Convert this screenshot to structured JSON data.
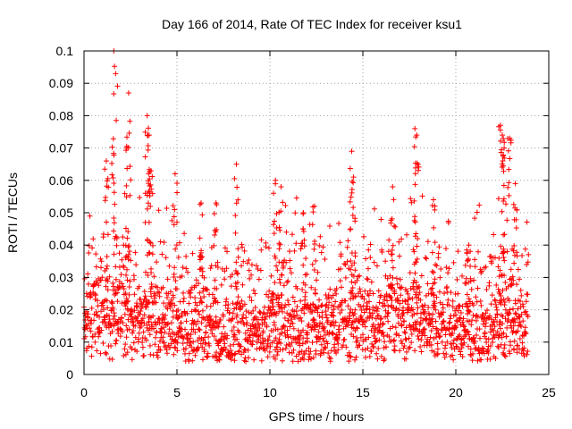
{
  "chart_data": {
    "type": "scatter",
    "title": "Day 166 of 2014, Rate Of TEC Index for receiver ksu1",
    "xlabel": "GPS time / hours",
    "ylabel": "ROTI / TECUs",
    "xlim": [
      0,
      25
    ],
    "ylim": [
      0,
      0.1
    ],
    "x_ticks": [
      0,
      5,
      10,
      15,
      20,
      25
    ],
    "x_tick_labels": [
      "0",
      "5",
      "10",
      "15",
      "20",
      "25"
    ],
    "y_ticks": [
      0,
      0.01,
      0.02,
      0.03,
      0.04,
      0.05,
      0.06,
      0.07,
      0.08,
      0.09,
      0.1
    ],
    "y_tick_labels": [
      "0",
      "0.01",
      "0.02",
      "0.03",
      "0.04",
      "0.05",
      "0.06",
      "0.07",
      "0.08",
      "0.09",
      "0.1"
    ],
    "grid": true,
    "marker": "plus",
    "series": [
      {
        "name": "ROTI",
        "color": "#ff0000",
        "x_range": [
          0,
          23.9
        ],
        "baseline": [
          [
            0,
            0.016
          ],
          [
            1,
            0.018
          ],
          [
            1.5,
            0.02
          ],
          [
            2,
            0.019
          ],
          [
            3,
            0.017
          ],
          [
            4,
            0.016
          ],
          [
            5,
            0.015
          ],
          [
            5.5,
            0.012
          ],
          [
            6,
            0.013
          ],
          [
            7,
            0.014
          ],
          [
            8,
            0.014
          ],
          [
            9,
            0.013
          ],
          [
            10,
            0.014
          ],
          [
            11,
            0.015
          ],
          [
            12,
            0.014
          ],
          [
            13,
            0.014
          ],
          [
            14,
            0.016
          ],
          [
            15,
            0.015
          ],
          [
            16,
            0.016
          ],
          [
            17,
            0.018
          ],
          [
            18,
            0.017
          ],
          [
            19,
            0.016
          ],
          [
            20,
            0.014
          ],
          [
            21,
            0.013
          ],
          [
            22,
            0.014
          ],
          [
            23,
            0.015
          ],
          [
            23.9,
            0.014
          ]
        ],
        "peaks": [
          {
            "x": 1.6,
            "y": 0.1
          },
          {
            "x": 1.7,
            "y": 0.093
          },
          {
            "x": 1.2,
            "y": 0.066
          },
          {
            "x": 2.4,
            "y": 0.087
          },
          {
            "x": 2.3,
            "y": 0.07
          },
          {
            "x": 3.4,
            "y": 0.08
          },
          {
            "x": 3.5,
            "y": 0.074
          },
          {
            "x": 3.6,
            "y": 0.063
          },
          {
            "x": 4.9,
            "y": 0.062
          },
          {
            "x": 6.3,
            "y": 0.053
          },
          {
            "x": 7.1,
            "y": 0.053
          },
          {
            "x": 8.2,
            "y": 0.065
          },
          {
            "x": 10.3,
            "y": 0.06
          },
          {
            "x": 10.6,
            "y": 0.058
          },
          {
            "x": 11.8,
            "y": 0.05
          },
          {
            "x": 12.4,
            "y": 0.052
          },
          {
            "x": 14.4,
            "y": 0.069
          },
          {
            "x": 14.5,
            "y": 0.061
          },
          {
            "x": 16.6,
            "y": 0.058
          },
          {
            "x": 17.8,
            "y": 0.076
          },
          {
            "x": 17.9,
            "y": 0.074
          },
          {
            "x": 18.8,
            "y": 0.054
          },
          {
            "x": 20.7,
            "y": 0.04
          },
          {
            "x": 22.4,
            "y": 0.077
          },
          {
            "x": 22.5,
            "y": 0.074
          },
          {
            "x": 22.6,
            "y": 0.07
          },
          {
            "x": 22.9,
            "y": 0.073
          },
          {
            "x": 23.2,
            "y": 0.059
          }
        ]
      }
    ]
  }
}
